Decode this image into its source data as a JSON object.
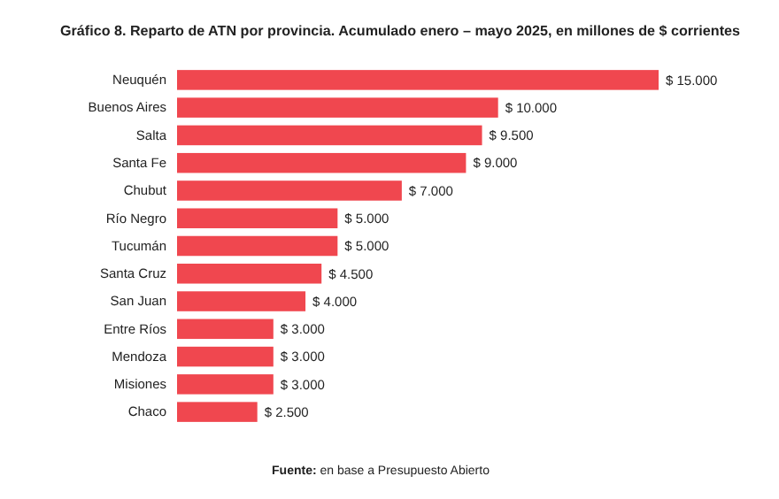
{
  "chart_data": {
    "type": "bar",
    "orientation": "horizontal",
    "title": "Gráfico 8. Reparto de ATN por provincia. Acumulado enero – mayo 2025, en millones de $ corrientes",
    "categories": [
      "Neuquén",
      "Buenos Aires",
      "Salta",
      "Santa Fe",
      "Chubut",
      "Río Negro",
      "Tucumán",
      "Santa Cruz",
      "San Juan",
      "Entre Ríos",
      "Mendoza",
      "Misiones",
      "Chaco"
    ],
    "values": [
      15000,
      10000,
      9500,
      9000,
      7000,
      5000,
      5000,
      4500,
      4000,
      3000,
      3000,
      3000,
      2500
    ],
    "value_labels": [
      "$ 15.000",
      "$ 10.000",
      "$ 9.500",
      "$ 9.000",
      "$ 7.000",
      "$ 5.000",
      "$ 5.000",
      "$ 4.500",
      "$ 4.000",
      "$ 3.000",
      "$ 3.000",
      "$ 3.000",
      "$ 2.500"
    ],
    "color": "#f0474f",
    "tick_labels": "y",
    "grid": false,
    "annotations": [
      "Fuente: en base a Presupuesto Abierto"
    ]
  }
}
